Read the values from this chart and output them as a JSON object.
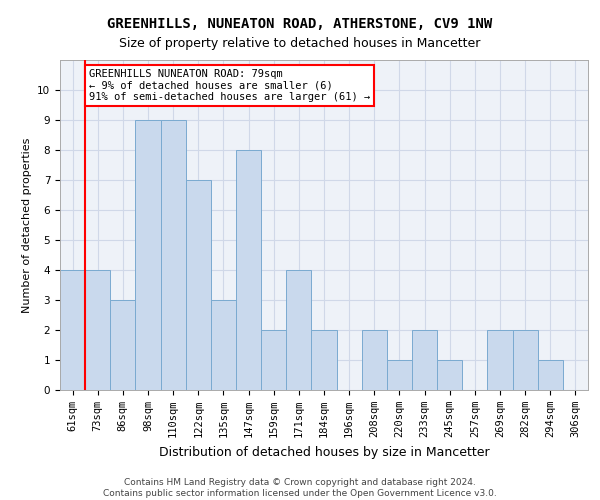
{
  "title": "GREENHILLS, NUNEATON ROAD, ATHERSTONE, CV9 1NW",
  "subtitle": "Size of property relative to detached houses in Mancetter",
  "xlabel": "Distribution of detached houses by size in Mancetter",
  "ylabel": "Number of detached properties",
  "bins": [
    "61sqm",
    "73sqm",
    "86sqm",
    "98sqm",
    "110sqm",
    "122sqm",
    "135sqm",
    "147sqm",
    "159sqm",
    "171sqm",
    "184sqm",
    "196sqm",
    "208sqm",
    "220sqm",
    "233sqm",
    "245sqm",
    "257sqm",
    "269sqm",
    "282sqm",
    "294sqm",
    "306sqm"
  ],
  "values": [
    4,
    4,
    3,
    9,
    9,
    7,
    3,
    8,
    2,
    4,
    2,
    0,
    2,
    1,
    2,
    1,
    0,
    2,
    2,
    1,
    0
  ],
  "bar_color": "#c9d9ed",
  "bar_edge_color": "#7aaad0",
  "red_line_x": 1,
  "marker_color": "red",
  "annotation_text": "GREENHILLS NUNEATON ROAD: 79sqm\n← 9% of detached houses are smaller (6)\n91% of semi-detached houses are larger (61) →",
  "annotation_box_color": "white",
  "annotation_box_edge_color": "red",
  "ylim": [
    0,
    11
  ],
  "yticks": [
    0,
    1,
    2,
    3,
    4,
    5,
    6,
    7,
    8,
    9,
    10
  ],
  "grid_color": "#d0d8e8",
  "background_color": "#eef2f8",
  "footer_text": "Contains HM Land Registry data © Crown copyright and database right 2024.\nContains public sector information licensed under the Open Government Licence v3.0.",
  "title_fontsize": 10,
  "subtitle_fontsize": 9,
  "ylabel_fontsize": 8,
  "xlabel_fontsize": 9,
  "tick_fontsize": 7.5,
  "annotation_fontsize": 7.5,
  "footer_fontsize": 6.5
}
